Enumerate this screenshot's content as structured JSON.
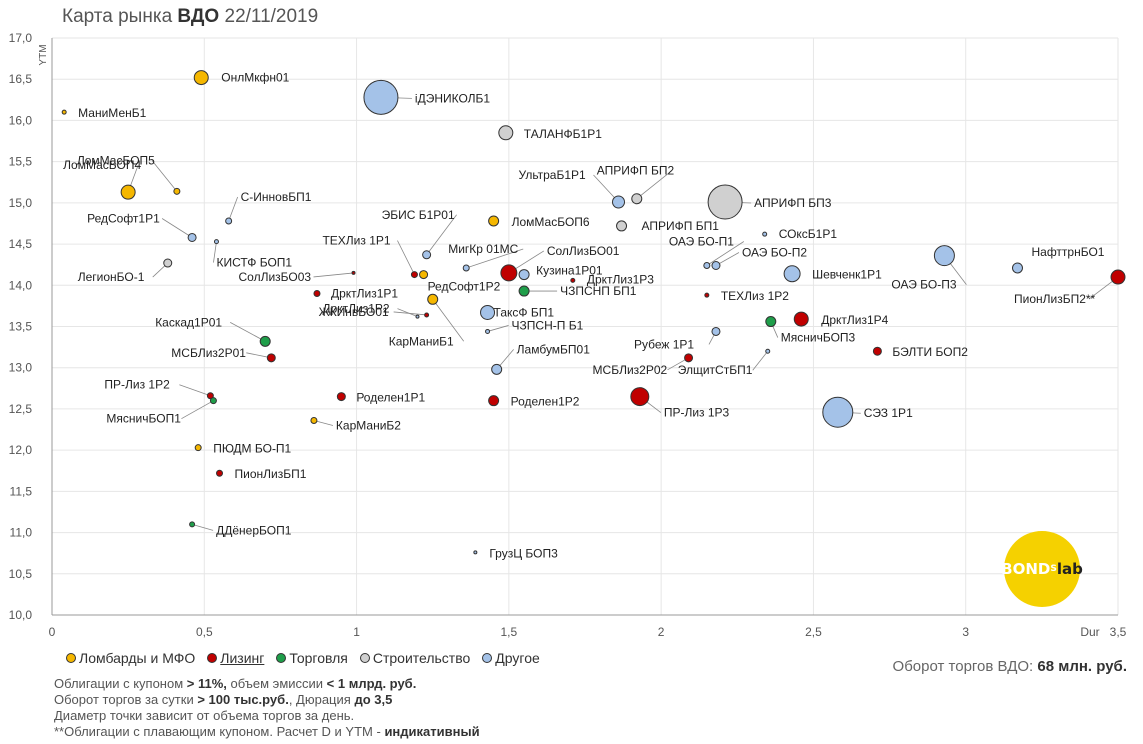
{
  "title": {
    "prefix": "Карта рынка",
    "bold": "ВДО",
    "date": "22/11/2019"
  },
  "legend": [
    {
      "label": "Ломбарды и МФО",
      "color": "#f5b700"
    },
    {
      "label": "Лизинг",
      "color": "#c00000"
    },
    {
      "label": "Торговля",
      "color": "#1f9e4a"
    },
    {
      "label": "Строительство",
      "color": "#d0d0d0"
    },
    {
      "label": "Другое",
      "color": "#a4c2e8"
    }
  ],
  "turnover": {
    "text": "Оборот торгов ВДО:",
    "value": "68 млн. руб."
  },
  "notes": {
    "line1_a": "Облигации с купоном",
    "line1_b": "> 11%,",
    "line1_c": "объем эмиссии",
    "line1_d": "< 1 млрд. руб.",
    "line2_a": "Оборот торгов за сутки",
    "line2_b": "> 100 тыс.руб.",
    "line2_c": ", Дюрация",
    "line2_d": "до 3,5",
    "line3": "Диаметр точки зависит от объема торгов за день.",
    "line4_a": "**Облигации с плавающим купоном. Расчет D и YTM -",
    "line4_b": "индикативный"
  },
  "logo": {
    "text1": "BOND",
    "text2": "S",
    "text3": "lab"
  },
  "chart_data": {
    "type": "scatter",
    "xlabel": "Dur",
    "ylabel": "YTM",
    "xlim": [
      0,
      3.5
    ],
    "ylim": [
      10.0,
      17.0
    ],
    "x_ticks": [
      "0",
      "0,5",
      "1",
      "1,5",
      "2",
      "2,5",
      "3",
      "3,5"
    ],
    "y_ticks": [
      "10,0",
      "10,5",
      "11,0",
      "11,5",
      "12,0",
      "12,5",
      "13,0",
      "13,5",
      "14,0",
      "14,5",
      "15,0",
      "15,5",
      "16,0",
      "16,5",
      "17,0"
    ],
    "colors": {
      "lombard": "#f5b700",
      "leasing": "#c00000",
      "trade": "#1f9e4a",
      "construction": "#d0d0d0",
      "other": "#a4c2e8"
    },
    "points": [
      {
        "name": "ОнлМкфн01",
        "x": 0.49,
        "y": 16.52,
        "cat": "lombard",
        "r": 7
      },
      {
        "name": "МаниМенБ1",
        "x": 0.04,
        "y": 16.1,
        "cat": "lombard",
        "r": 2
      },
      {
        "name": "iДЭНИКОЛБ1",
        "x": 1.08,
        "y": 16.28,
        "cat": "other",
        "r": 17
      },
      {
        "name": "ТАЛАНФБ1Р1",
        "x": 1.49,
        "y": 15.85,
        "cat": "construction",
        "r": 7
      },
      {
        "name": "ЛомМасБОП5",
        "x": 0.41,
        "y": 15.14,
        "cat": "lombard",
        "r": 3
      },
      {
        "name": "ЛомМасБОП4",
        "x": 0.25,
        "y": 15.13,
        "cat": "lombard",
        "r": 7
      },
      {
        "name": "С-ИнновБП1",
        "x": 0.58,
        "y": 14.78,
        "cat": "other",
        "r": 3
      },
      {
        "name": "РедСофт1Р1",
        "x": 0.46,
        "y": 14.58,
        "cat": "other",
        "r": 4
      },
      {
        "name": "КИСТФ БОП1",
        "x": 0.54,
        "y": 14.53,
        "cat": "other",
        "r": 2
      },
      {
        "name": "ЛегионБО-1",
        "x": 0.38,
        "y": 14.27,
        "cat": "construction",
        "r": 4
      },
      {
        "name": "ЭБИС Б1Р01",
        "x": 1.23,
        "y": 14.37,
        "cat": "other",
        "r": 4
      },
      {
        "name": "ЛомМасБОП6",
        "x": 1.45,
        "y": 14.78,
        "cat": "lombard",
        "r": 5
      },
      {
        "name": "ТЕХЛиз 1Р1",
        "x": 1.19,
        "y": 14.13,
        "cat": "leasing",
        "r": 3
      },
      {
        "name": "РедСофт1Р2",
        "x": 1.22,
        "y": 14.13,
        "cat": "lombard",
        "r": 4
      },
      {
        "name": "МигКр 01МС",
        "x": 1.36,
        "y": 14.21,
        "cat": "other",
        "r": 3
      },
      {
        "name": "СолЛизБО01",
        "x": 1.5,
        "y": 14.15,
        "cat": "leasing",
        "r": 8
      },
      {
        "name": "СолЛизБО03",
        "x": 0.99,
        "y": 14.15,
        "cat": "leasing",
        "r": 1.5
      },
      {
        "name": "Кузина1Р01",
        "x": 1.55,
        "y": 14.13,
        "cat": "other",
        "r": 5
      },
      {
        "name": "ДрктЛиз1Р3",
        "x": 1.71,
        "y": 14.06,
        "cat": "leasing",
        "r": 2
      },
      {
        "name": "ЧЗПСНП БП1",
        "x": 1.55,
        "y": 13.93,
        "cat": "trade",
        "r": 5
      },
      {
        "name": "ДрктЛиз1Р1",
        "x": 0.87,
        "y": 13.9,
        "cat": "leasing",
        "r": 3
      },
      {
        "name": "ДрктЛиз1Р2",
        "x": 1.2,
        "y": 13.62,
        "cat": "other",
        "r": 1.5
      },
      {
        "name": "ЖКИнвБО01",
        "x": 1.23,
        "y": 13.64,
        "cat": "leasing",
        "r": 2
      },
      {
        "name": "КарМаниБ1",
        "x": 1.25,
        "y": 13.83,
        "cat": "lombard",
        "r": 5
      },
      {
        "name": "ТаксФ БП1",
        "x": 1.43,
        "y": 13.67,
        "cat": "other",
        "r": 7
      },
      {
        "name": "ЧЗПСН-П Б1",
        "x": 1.43,
        "y": 13.44,
        "cat": "other",
        "r": 2
      },
      {
        "name": "Каскад1Р01",
        "x": 0.7,
        "y": 13.32,
        "cat": "trade",
        "r": 5
      },
      {
        "name": "МСБЛиз2Р01",
        "x": 0.72,
        "y": 13.12,
        "cat": "leasing",
        "r": 4
      },
      {
        "name": "ЛамбумБП01",
        "x": 1.46,
        "y": 12.98,
        "cat": "other",
        "r": 5
      },
      {
        "name": "ПР-Лиз 1Р2",
        "x": 0.52,
        "y": 12.66,
        "cat": "leasing",
        "r": 3
      },
      {
        "name": "МясничБОП1",
        "x": 0.53,
        "y": 12.6,
        "cat": "trade",
        "r": 3
      },
      {
        "name": "Роделен1Р1",
        "x": 0.95,
        "y": 12.65,
        "cat": "leasing",
        "r": 4
      },
      {
        "name": "Роделен1Р2",
        "x": 1.45,
        "y": 12.6,
        "cat": "leasing",
        "r": 5
      },
      {
        "name": "КарМаниБ2",
        "x": 0.86,
        "y": 12.36,
        "cat": "lombard",
        "r": 3
      },
      {
        "name": "ПЮДМ БО-П1",
        "x": 0.48,
        "y": 12.03,
        "cat": "lombard",
        "r": 3
      },
      {
        "name": "ПионЛизБП1",
        "x": 0.55,
        "y": 11.72,
        "cat": "leasing",
        "r": 3
      },
      {
        "name": "ДДёнерБОП1",
        "x": 0.46,
        "y": 11.1,
        "cat": "trade",
        "r": 2.5
      },
      {
        "name": "ГрузЦ БОП3",
        "x": 1.39,
        "y": 10.76,
        "cat": "other",
        "r": 1.5
      },
      {
        "name": "УльтраБ1Р1",
        "x": 1.86,
        "y": 15.01,
        "cat": "other",
        "r": 6
      },
      {
        "name": "АПРИФП БП2",
        "x": 1.92,
        "y": 15.05,
        "cat": "construction",
        "r": 5
      },
      {
        "name": "АПРИФП БП1",
        "x": 1.87,
        "y": 14.72,
        "cat": "construction",
        "r": 5
      },
      {
        "name": "АПРИФП БП3",
        "x": 2.21,
        "y": 15.01,
        "cat": "construction",
        "r": 17
      },
      {
        "name": "СОксБ1Р1",
        "x": 2.34,
        "y": 14.62,
        "cat": "other",
        "r": 2
      },
      {
        "name": "ОАЭ БО-П1",
        "x": 2.15,
        "y": 14.24,
        "cat": "other",
        "r": 3
      },
      {
        "name": "ОАЭ БО-П2",
        "x": 2.18,
        "y": 14.24,
        "cat": "other",
        "r": 4
      },
      {
        "name": "Шевченк1Р1",
        "x": 2.43,
        "y": 14.14,
        "cat": "other",
        "r": 8
      },
      {
        "name": "ОАЭ БО-П3",
        "x": 2.93,
        "y": 14.36,
        "cat": "other",
        "r": 10
      },
      {
        "name": "НафттрнБО1",
        "x": 3.17,
        "y": 14.21,
        "cat": "other",
        "r": 5
      },
      {
        "name": "ПионЛизБП2**",
        "x": 3.5,
        "y": 14.1,
        "cat": "leasing",
        "r": 7
      },
      {
        "name": "ТЕХЛиз 1Р2",
        "x": 2.15,
        "y": 13.88,
        "cat": "leasing",
        "r": 2
      },
      {
        "name": "ДрктЛиз1Р4",
        "x": 2.46,
        "y": 13.59,
        "cat": "leasing",
        "r": 7
      },
      {
        "name": "МясничБОП3",
        "x": 2.36,
        "y": 13.56,
        "cat": "trade",
        "r": 5
      },
      {
        "name": "Рубеж 1Р1",
        "x": 2.18,
        "y": 13.44,
        "cat": "other",
        "r": 4
      },
      {
        "name": "БЭЛТИ БОП2",
        "x": 2.71,
        "y": 13.2,
        "cat": "leasing",
        "r": 4
      },
      {
        "name": "МСБЛиз2Р02",
        "x": 2.09,
        "y": 13.12,
        "cat": "leasing",
        "r": 4
      },
      {
        "name": "ЭлщитСтБП1",
        "x": 2.35,
        "y": 13.2,
        "cat": "other",
        "r": 2
      },
      {
        "name": "ПР-Лиз 1Р3",
        "x": 1.93,
        "y": 12.65,
        "cat": "leasing",
        "r": 9
      },
      {
        "name": "СЭЗ 1Р1",
        "x": 2.58,
        "y": 12.46,
        "cat": "other",
        "r": 15
      }
    ]
  }
}
